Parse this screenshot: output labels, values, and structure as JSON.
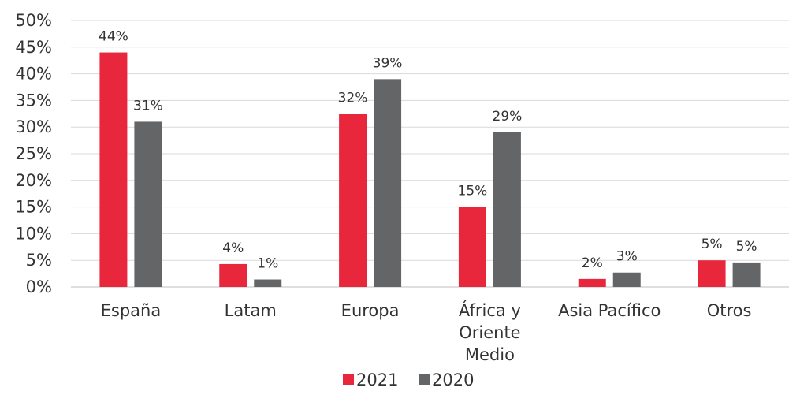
{
  "chart_data": {
    "type": "bar",
    "categories": [
      [
        "España"
      ],
      [
        "Latam"
      ],
      [
        "Europa"
      ],
      [
        "África y",
        "Oriente",
        "Medio"
      ],
      [
        "Asia Pacífico"
      ],
      [
        "Otros"
      ]
    ],
    "series": [
      {
        "name": "2021",
        "color": "#e8273c",
        "values": [
          44,
          4.3,
          32.5,
          15,
          1.5,
          5
        ],
        "labels": [
          "44%",
          "4%",
          "32%",
          "15%",
          "2%",
          "5%"
        ]
      },
      {
        "name": "2020",
        "color": "#646567",
        "values": [
          31,
          1.4,
          39,
          29,
          2.7,
          4.6
        ],
        "labels": [
          "31%",
          "1%",
          "39%",
          "29%",
          "3%",
          "5%"
        ]
      }
    ],
    "ylim": [
      0,
      50
    ],
    "yticks": [
      0,
      5,
      10,
      15,
      20,
      25,
      30,
      35,
      40,
      45,
      50
    ],
    "ytick_labels": [
      "0%",
      "5%",
      "10%",
      "15%",
      "20%",
      "25%",
      "30%",
      "35%",
      "40%",
      "45%",
      "50%"
    ],
    "grid": true,
    "legend_position": "bottom-center",
    "title": "",
    "xlabel": "",
    "ylabel": ""
  }
}
